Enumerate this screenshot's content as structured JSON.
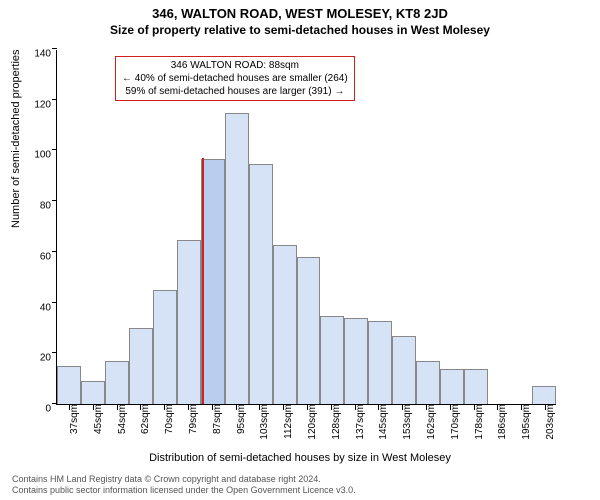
{
  "header": {
    "address": "346, WALTON ROAD, WEST MOLESEY, KT8 2JD",
    "subtitle": "Size of property relative to semi-detached houses in West Molesey"
  },
  "chart": {
    "type": "histogram",
    "bar_fill": "#d6e2f5",
    "bar_stroke": "#888888",
    "highlight_fill": "#b9cdee",
    "highlight_index": 6,
    "marker_color": "#d01f1f",
    "background": "#ffffff",
    "ylim": [
      0,
      140
    ],
    "ytick_step": 20,
    "ylabel": "Number of semi-detached properties",
    "xlabel": "Distribution of semi-detached houses by size in West Molesey",
    "categories": [
      "37sqm",
      "45sqm",
      "54sqm",
      "62sqm",
      "70sqm",
      "79sqm",
      "87sqm",
      "95sqm",
      "103sqm",
      "112sqm",
      "120sqm",
      "128sqm",
      "137sqm",
      "145sqm",
      "153sqm",
      "162sqm",
      "170sqm",
      "178sqm",
      "186sqm",
      "195sqm",
      "203sqm"
    ],
    "values": [
      15,
      9,
      17,
      30,
      45,
      65,
      97,
      115,
      95,
      63,
      58,
      35,
      34,
      33,
      27,
      17,
      14,
      14,
      0,
      0,
      7
    ],
    "label_fontsize": 11,
    "tick_fontsize": 10
  },
  "infobox": {
    "line1": "346 WALTON ROAD: 88sqm",
    "line2": "← 40% of semi-detached houses are smaller (264)",
    "line3": "59% of semi-detached houses are larger (391) →",
    "border_color": "#d01f1f"
  },
  "footer": {
    "line1": "Contains HM Land Registry data © Crown copyright and database right 2024.",
    "line2": "Contains public sector information licensed under the Open Government Licence v3.0."
  }
}
